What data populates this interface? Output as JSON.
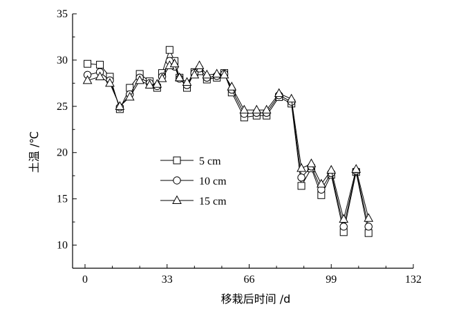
{
  "chart_data": {
    "type": "line",
    "xlabel": "移栽后时间 /d",
    "ylabel": "土温 /℃",
    "xlim": [
      -5,
      132
    ],
    "ylim": [
      7.5,
      35
    ],
    "xticks": [
      0,
      33,
      66,
      99,
      132
    ],
    "yticks": [
      10,
      15,
      20,
      25,
      30,
      35
    ],
    "legend_position": "center-left",
    "series": [
      {
        "name": "5 cm",
        "marker": "square",
        "x": [
          1,
          6,
          10,
          14,
          18,
          22,
          26,
          29,
          31,
          34,
          36,
          38,
          41,
          44,
          46,
          49,
          53,
          56,
          59,
          64,
          69,
          73,
          78,
          83,
          87,
          91,
          95,
          99,
          104,
          109,
          114
        ],
        "y": [
          29.6,
          29.5,
          28.2,
          24.7,
          27.0,
          28.5,
          27.7,
          27.0,
          28.6,
          31.1,
          29.9,
          28.1,
          27.0,
          28.7,
          28.8,
          27.9,
          28.1,
          28.6,
          26.5,
          23.8,
          24.0,
          24.0,
          26.0,
          25.3,
          16.4,
          18.3,
          15.4,
          17.6,
          11.4,
          17.9,
          11.3
        ]
      },
      {
        "name": "10 cm",
        "marker": "circle",
        "x": [
          1,
          6,
          10,
          14,
          18,
          22,
          26,
          29,
          31,
          34,
          36,
          38,
          41,
          44,
          46,
          49,
          53,
          56,
          59,
          64,
          69,
          73,
          78,
          83,
          87,
          91,
          95,
          99,
          104,
          109,
          114
        ],
        "y": [
          28.4,
          28.7,
          27.8,
          24.9,
          26.3,
          28.1,
          27.5,
          27.2,
          28.2,
          29.9,
          29.3,
          28.0,
          27.3,
          28.6,
          29.1,
          28.1,
          28.3,
          28.5,
          26.8,
          24.2,
          24.3,
          24.3,
          26.2,
          25.5,
          17.3,
          18.5,
          16.0,
          17.8,
          12.0,
          18.0,
          12.0
        ]
      },
      {
        "name": "15 cm",
        "marker": "triangle",
        "x": [
          1,
          6,
          10,
          14,
          18,
          22,
          26,
          29,
          31,
          34,
          36,
          38,
          41,
          44,
          46,
          49,
          53,
          56,
          59,
          64,
          69,
          73,
          78,
          83,
          87,
          91,
          95,
          99,
          104,
          109,
          114
        ],
        "y": [
          27.8,
          28.2,
          27.5,
          25.0,
          26.0,
          27.8,
          27.3,
          27.4,
          28.0,
          29.4,
          29.6,
          28.1,
          27.6,
          28.4,
          29.4,
          28.4,
          28.5,
          28.4,
          27.1,
          24.6,
          24.6,
          24.6,
          26.4,
          25.8,
          18.3,
          18.8,
          16.6,
          18.1,
          12.8,
          18.2,
          12.9
        ]
      }
    ]
  }
}
